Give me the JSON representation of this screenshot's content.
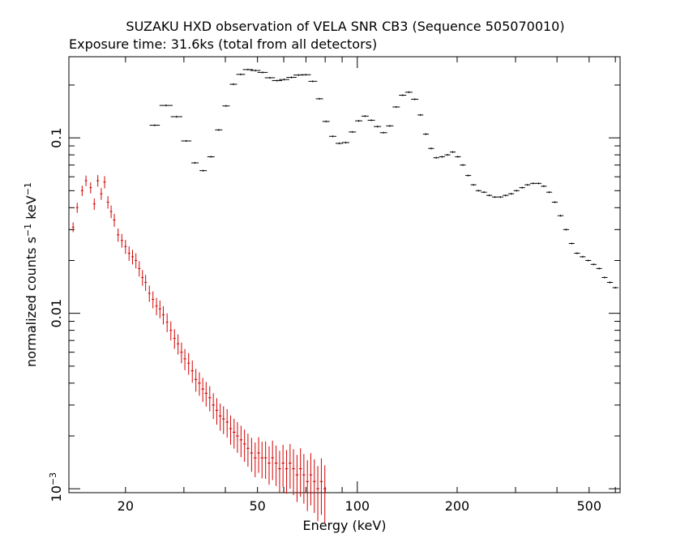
{
  "chart_data": {
    "type": "scatter",
    "title": "SUZAKU HXD observation of VELA SNR CB3 (Sequence 505070010)",
    "subtitle": "Exposure time: 31.6ks (total from all detectors)",
    "xlabel": "Energy (keV)",
    "ylabel_main": "normalized counts s",
    "ylabel_exp1": "−1",
    "ylabel_mid": " keV",
    "ylabel_exp2": "−1",
    "x_scale": "log",
    "y_scale": "log",
    "xlim": [
      13.5,
      620
    ],
    "ylim": [
      0.00095,
      0.29
    ],
    "x_ticks": [
      {
        "value": 20,
        "label": "20"
      },
      {
        "value": 50,
        "label": "50"
      },
      {
        "value": 100,
        "label": "100"
      },
      {
        "value": 200,
        "label": "200"
      },
      {
        "value": 500,
        "label": "500"
      }
    ],
    "y_ticks": [
      {
        "value": 0.1,
        "label": "0.1"
      },
      {
        "value": 0.01,
        "label": "0.01"
      }
    ],
    "y_tick_exp_label": {
      "value": 0.001,
      "base": "10",
      "exp": "−3"
    },
    "grid": false,
    "legend": "none",
    "series": [
      {
        "color": "#000000",
        "points": [
          [
            24.5,
            0.118,
            0.7
          ],
          [
            26.5,
            0.153,
            0.9
          ],
          [
            28.5,
            0.132,
            0.8
          ],
          [
            30.5,
            0.096,
            0.7
          ],
          [
            32.4,
            0.072,
            0.5
          ],
          [
            34.3,
            0.065,
            0.5
          ],
          [
            36.2,
            0.078,
            0.5
          ],
          [
            38.2,
            0.111,
            0.5
          ],
          [
            40.2,
            0.152,
            0.5
          ],
          [
            42.3,
            0.202,
            0.5
          ],
          [
            44.5,
            0.23,
            0.6
          ],
          [
            46.8,
            0.245,
            0.7
          ],
          [
            49.3,
            0.242,
            0.7
          ],
          [
            51.8,
            0.236,
            0.7
          ],
          [
            54.5,
            0.22,
            0.7
          ],
          [
            57.3,
            0.212,
            0.7
          ],
          [
            60.2,
            0.215,
            0.7
          ],
          [
            63.3,
            0.221,
            0.7
          ],
          [
            66.5,
            0.228,
            0.7
          ],
          [
            69.9,
            0.229,
            0.7
          ],
          [
            73.4,
            0.21,
            0.6
          ],
          [
            76.9,
            0.167,
            0.5
          ],
          [
            80.5,
            0.124,
            0.5
          ],
          [
            84.3,
            0.102,
            0.5
          ],
          [
            88.2,
            0.093,
            0.5
          ],
          [
            92.3,
            0.094,
            0.5
          ],
          [
            96.6,
            0.108,
            0.5
          ],
          [
            101.0,
            0.125,
            0.5
          ],
          [
            105.5,
            0.133,
            0.5
          ],
          [
            110.2,
            0.126,
            0.5
          ],
          [
            115.0,
            0.116,
            0.5
          ],
          [
            120.0,
            0.107,
            0.5
          ],
          [
            125.3,
            0.117,
            0.5
          ],
          [
            131.0,
            0.15,
            0.5
          ],
          [
            137.0,
            0.175,
            0.5
          ],
          [
            143.0,
            0.182,
            0.5
          ],
          [
            149.0,
            0.166,
            0.5
          ],
          [
            155.0,
            0.135,
            0.4
          ],
          [
            161.0,
            0.105,
            0.4
          ],
          [
            167.0,
            0.087,
            0.4
          ],
          [
            173.0,
            0.077,
            0.4
          ],
          [
            180.0,
            0.078,
            0.4
          ],
          [
            187.0,
            0.08,
            0.4
          ],
          [
            194.0,
            0.083,
            0.4
          ],
          [
            201.0,
            0.078,
            0.4
          ],
          [
            208.0,
            0.07,
            0.4
          ],
          [
            216.0,
            0.061,
            0.4
          ],
          [
            224.0,
            0.054,
            0.4
          ],
          [
            232.0,
            0.05,
            0.4
          ],
          [
            241.0,
            0.049,
            0.4
          ],
          [
            250.0,
            0.047,
            0.4
          ],
          [
            260.0,
            0.046,
            0.4
          ],
          [
            270.0,
            0.046,
            0.4
          ],
          [
            280.0,
            0.047,
            0.4
          ],
          [
            291.0,
            0.048,
            0.4
          ],
          [
            302.0,
            0.05,
            0.4
          ],
          [
            314.0,
            0.052,
            0.4
          ],
          [
            326.0,
            0.054,
            0.4
          ],
          [
            339.0,
            0.055,
            0.4
          ],
          [
            352.0,
            0.055,
            0.4
          ],
          [
            365.0,
            0.053,
            0.4
          ],
          [
            379.0,
            0.049,
            0.4
          ],
          [
            394.0,
            0.043,
            0.4
          ],
          [
            410.0,
            0.036,
            0.4
          ],
          [
            426.0,
            0.03,
            0.4
          ],
          [
            443.0,
            0.025,
            0.4
          ],
          [
            460.0,
            0.022,
            0.4
          ],
          [
            478.0,
            0.021,
            0.4
          ],
          [
            497.0,
            0.02,
            0.4
          ],
          [
            516.0,
            0.019,
            0.4
          ],
          [
            536.0,
            0.018,
            0.4
          ],
          [
            557.0,
            0.016,
            0.4
          ],
          [
            578.0,
            0.015,
            0.4
          ],
          [
            600.0,
            0.014,
            0.4
          ]
        ]
      },
      {
        "color": "#d40000",
        "points": [
          [
            13.9,
            0.031,
            0.25
          ],
          [
            14.3,
            0.04,
            0.3
          ],
          [
            14.8,
            0.05,
            0.3
          ],
          [
            15.2,
            0.057,
            0.3
          ],
          [
            15.7,
            0.052,
            0.3
          ],
          [
            16.1,
            0.042,
            0.3
          ],
          [
            16.5,
            0.057,
            0.3
          ],
          [
            16.9,
            0.048,
            0.3
          ],
          [
            17.3,
            0.056,
            0.3
          ],
          [
            17.7,
            0.043,
            0.3
          ],
          [
            18.1,
            0.038,
            0.3
          ],
          [
            18.5,
            0.034,
            0.3
          ],
          [
            19.0,
            0.028,
            0.35
          ],
          [
            19.5,
            0.026,
            0.35
          ],
          [
            20.0,
            0.024,
            0.35
          ],
          [
            20.5,
            0.022,
            0.35
          ],
          [
            21.0,
            0.021,
            0.35
          ],
          [
            21.5,
            0.02,
            0.35
          ],
          [
            22.0,
            0.018,
            0.4
          ],
          [
            22.5,
            0.016,
            0.4
          ],
          [
            23.0,
            0.015,
            0.4
          ],
          [
            23.6,
            0.013,
            0.4
          ],
          [
            24.2,
            0.012,
            0.45
          ],
          [
            24.8,
            0.011,
            0.45
          ],
          [
            25.4,
            0.0106,
            0.45
          ],
          [
            26.0,
            0.0098,
            0.45
          ],
          [
            26.7,
            0.0089,
            0.5
          ],
          [
            27.4,
            0.008,
            0.5
          ],
          [
            28.1,
            0.0072,
            0.5
          ],
          [
            28.8,
            0.0067,
            0.5
          ],
          [
            29.5,
            0.006,
            0.55
          ],
          [
            30.2,
            0.0055,
            0.55
          ],
          [
            31.0,
            0.0052,
            0.55
          ],
          [
            31.8,
            0.0047,
            0.55
          ],
          [
            32.6,
            0.0042,
            0.6
          ],
          [
            33.4,
            0.004,
            0.6
          ],
          [
            34.2,
            0.0037,
            0.6
          ],
          [
            35.0,
            0.0035,
            0.6
          ],
          [
            35.9,
            0.0033,
            0.6
          ],
          [
            36.8,
            0.003,
            0.6
          ],
          [
            37.7,
            0.0028,
            0.6
          ],
          [
            38.6,
            0.0026,
            0.6
          ],
          [
            39.5,
            0.0025,
            0.6
          ],
          [
            40.5,
            0.0024,
            0.6
          ],
          [
            41.5,
            0.0022,
            0.6
          ],
          [
            42.5,
            0.0021,
            0.6
          ],
          [
            43.5,
            0.002,
            0.6
          ],
          [
            44.6,
            0.0019,
            0.6
          ],
          [
            45.7,
            0.0018,
            0.6
          ],
          [
            46.8,
            0.0017,
            0.6
          ],
          [
            48.0,
            0.0016,
            0.6
          ],
          [
            49.2,
            0.0015,
            0.6
          ],
          [
            50.4,
            0.0016,
            0.6
          ],
          [
            51.6,
            0.0015,
            0.6
          ],
          [
            52.9,
            0.0015,
            0.6
          ],
          [
            54.2,
            0.0014,
            0.6
          ],
          [
            55.5,
            0.0015,
            0.6
          ],
          [
            56.9,
            0.0014,
            0.6
          ],
          [
            58.3,
            0.0013,
            0.6
          ],
          [
            59.7,
            0.0014,
            0.6
          ],
          [
            61.2,
            0.0013,
            0.6
          ],
          [
            62.7,
            0.0014,
            0.6
          ],
          [
            64.2,
            0.0013,
            0.6
          ],
          [
            65.8,
            0.0012,
            0.6
          ],
          [
            67.4,
            0.0013,
            0.6
          ],
          [
            69.0,
            0.0012,
            0.6
          ],
          [
            70.7,
            0.0011,
            0.6
          ],
          [
            72.4,
            0.0012,
            0.6
          ],
          [
            74.2,
            0.0011,
            0.6
          ],
          [
            76.0,
            0.001,
            0.6
          ],
          [
            77.9,
            0.0011,
            0.6
          ],
          [
            79.8,
            0.001,
            0.6
          ]
        ]
      }
    ]
  }
}
